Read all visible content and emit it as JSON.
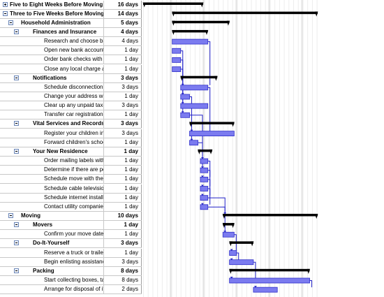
{
  "tasks": [
    {
      "name": "Five to Eight Weeks Before Moving",
      "duration": "16 days",
      "level": 0,
      "summary": true,
      "toggle": "plus",
      "start": 0,
      "end": 12.8
    },
    {
      "name": "Three to Five Weeks Before Moving",
      "duration": "14 days",
      "level": 0,
      "summary": true,
      "toggle": "minus",
      "start": 6.2,
      "end": 37.2
    },
    {
      "name": "Household Administration",
      "duration": "5 days",
      "level": 1,
      "summary": true,
      "toggle": "minus",
      "start": 6.2,
      "end": 18.4
    },
    {
      "name": "Finances and Insurance",
      "duration": "4 days",
      "level": 2,
      "summary": true,
      "toggle": "minus",
      "start": 6.2,
      "end": 13.8
    },
    {
      "name": "Research and choose ba",
      "duration": "4 days",
      "level": 3,
      "summary": false,
      "start": 6.2,
      "end": 13.8
    },
    {
      "name": "Open new bank account",
      "duration": "1 day",
      "level": 3,
      "summary": false,
      "start": 6.2,
      "end": 8.0
    },
    {
      "name": "Order bank checks with",
      "duration": "1 day",
      "level": 3,
      "summary": false,
      "start": 6.2,
      "end": 8.0
    },
    {
      "name": "Close any local charge a",
      "duration": "1 day",
      "level": 3,
      "summary": false,
      "start": 6.2,
      "end": 8.0
    },
    {
      "name": "Notifications",
      "duration": "3 days",
      "level": 2,
      "summary": true,
      "toggle": "minus",
      "start": 8.0,
      "end": 15.8
    },
    {
      "name": "Schedule disconnection o",
      "duration": "3 days",
      "level": 3,
      "summary": false,
      "start": 8.0,
      "end": 13.8
    },
    {
      "name": "Change your address wi",
      "duration": "1 day",
      "level": 3,
      "summary": false,
      "start": 8.0,
      "end": 9.9
    },
    {
      "name": "Clear up any unpaid taxe",
      "duration": "3 days",
      "level": 3,
      "summary": false,
      "start": 8.0,
      "end": 13.8
    },
    {
      "name": "Transfer car registration",
      "duration": "1 day",
      "level": 3,
      "summary": false,
      "start": 8.0,
      "end": 9.9
    },
    {
      "name": "Vital Services and Records",
      "duration": "3 days",
      "level": 2,
      "summary": true,
      "toggle": "minus",
      "start": 9.9,
      "end": 19.4
    },
    {
      "name": "Register your children in",
      "duration": "3 days",
      "level": 3,
      "summary": false,
      "start": 9.9,
      "end": 19.4
    },
    {
      "name": "Forward children's schoo",
      "duration": "1 day",
      "level": 3,
      "summary": false,
      "start": 9.9,
      "end": 11.7
    },
    {
      "name": "Your New Residence",
      "duration": "1 day",
      "level": 2,
      "summary": true,
      "toggle": "minus",
      "start": 11.7,
      "end": 14.7
    },
    {
      "name": "Order mailing labels with",
      "duration": "1 day",
      "level": 3,
      "summary": false,
      "start": 12.2,
      "end": 13.8
    },
    {
      "name": "Determine if there are pe",
      "duration": "1 day",
      "level": 3,
      "summary": false,
      "start": 12.2,
      "end": 13.8
    },
    {
      "name": "Schedule move with the l",
      "duration": "1 day",
      "level": 3,
      "summary": false,
      "start": 12.2,
      "end": 13.8
    },
    {
      "name": "Schedule cable televisio",
      "duration": "1 day",
      "level": 3,
      "summary": false,
      "start": 12.2,
      "end": 13.8
    },
    {
      "name": "Schedule internet installa",
      "duration": "1 day",
      "level": 3,
      "summary": false,
      "start": 12.2,
      "end": 13.8
    },
    {
      "name": "Contact utility companies",
      "duration": "1 day",
      "level": 3,
      "summary": false,
      "start": 12.2,
      "end": 13.8
    },
    {
      "name": "Moving",
      "duration": "10 days",
      "level": 1,
      "summary": true,
      "toggle": "minus",
      "start": 17.0,
      "end": 37.2
    },
    {
      "name": "Movers",
      "duration": "1 day",
      "level": 2,
      "summary": true,
      "toggle": "minus",
      "start": 17.0,
      "end": 19.4
    },
    {
      "name": "Confirm your move date",
      "duration": "1 day",
      "level": 3,
      "summary": false,
      "start": 17.0,
      "end": 19.4
    },
    {
      "name": "Do-It-Yourself",
      "duration": "3 days",
      "level": 2,
      "summary": true,
      "toggle": "minus",
      "start": 18.4,
      "end": 23.5
    },
    {
      "name": "Reserve a truck or trailer",
      "duration": "1 day",
      "level": 3,
      "summary": false,
      "start": 18.4,
      "end": 19.9
    },
    {
      "name": "Begin enlisting assistanc",
      "duration": "3 days",
      "level": 3,
      "summary": false,
      "start": 18.4,
      "end": 23.5
    },
    {
      "name": "Packing",
      "duration": "8 days",
      "level": 2,
      "summary": true,
      "toggle": "minus",
      "start": 18.4,
      "end": 35.5
    },
    {
      "name": "Start collecting boxes, ta",
      "duration": "8 days",
      "level": 3,
      "summary": false,
      "start": 18.4,
      "end": 35.5
    },
    {
      "name": "Arrange for disposal of it",
      "duration": "2 days",
      "level": 3,
      "summary": false,
      "start": 23.5,
      "end": 28.6
    }
  ],
  "timescale": {
    "columns": 38
  },
  "links": [
    [
      4,
      9
    ],
    [
      5,
      10
    ],
    [
      6,
      11
    ],
    [
      7,
      12
    ],
    [
      9,
      14
    ],
    [
      10,
      15
    ],
    [
      12,
      17
    ],
    [
      15,
      18
    ],
    [
      17,
      19
    ],
    [
      18,
      20
    ],
    [
      19,
      21
    ],
    [
      20,
      22
    ],
    [
      21,
      23
    ],
    [
      22,
      25
    ],
    [
      25,
      27
    ],
    [
      27,
      28
    ],
    [
      28,
      30
    ],
    [
      30,
      31
    ]
  ],
  "colors": {
    "task_bar": "#7b7bef",
    "task_border": "#3030c8",
    "summary": "#000000",
    "link": "#2020c8",
    "grid": "#c8c8c8",
    "nonworking": "#e4e4e4",
    "selection": "#dedede"
  }
}
